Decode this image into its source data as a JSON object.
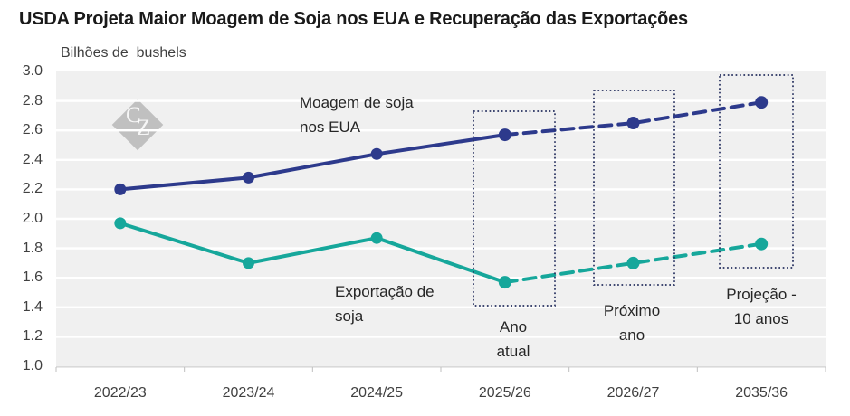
{
  "page": {
    "title": "USDA Projeta Maior Moagem de Soja nos EUA e Recuperação das Exportações",
    "unit_label": "Bilhões de  bushels"
  },
  "watermark": {
    "monogram": "CZ",
    "letter_c": "C",
    "letter_z": "Z"
  },
  "colors": {
    "crush_line": "#2d3a8c",
    "exports_line": "#16a79b",
    "plot_background": "#f0f0f0",
    "gridline": "#ffffff",
    "axis_line": "#d9d9d9",
    "axis_tick": "#bfbfbf",
    "tick_text": "#404040",
    "annotation_text": "#262626",
    "title_text": "#1a1a1a",
    "highlight_box_border": "#26305f",
    "watermark": "#bdbdbd"
  },
  "chart_data": {
    "type": "line",
    "title": "USDA Projeta Maior Moagem de Soja nos EUA e Recuperação das Exportações",
    "ylabel": "Bilhões de  bushels",
    "xlabel": "",
    "categories": [
      "2022/23",
      "2023/24",
      "2024/25",
      "2025/26",
      "2026/27",
      "2035/36"
    ],
    "series": [
      {
        "name": "Moagem de soja nos EUA",
        "annotation_lines": [
          "Moagem de soja",
          "nos EUA"
        ],
        "color": "#2d3a8c",
        "values": [
          2.2,
          2.28,
          2.44,
          2.57,
          2.65,
          2.79
        ],
        "projection_from": "2025/26",
        "style": "solid then dashed projection"
      },
      {
        "name": "Exportação de soja",
        "annotation_lines": [
          "Exportação de",
          "soja"
        ],
        "color": "#16a79b",
        "values": [
          1.97,
          1.7,
          1.87,
          1.57,
          1.7,
          1.83
        ],
        "projection_from": "2025/26",
        "style": "solid then dashed projection"
      }
    ],
    "ylim": [
      1.0,
      3.0
    ],
    "ytick_labels": [
      "3.0",
      "2.8",
      "2.6",
      "2.4",
      "2.2",
      "2.0",
      "1.8",
      "1.6",
      "1.4",
      "1.2",
      "1.0"
    ],
    "grid": "horizontal white gridlines on gray plot area",
    "legend_position": "inline annotations near lines",
    "highlight_boxes": [
      {
        "category": "2025/26",
        "label_lines": [
          "Ano",
          "atual"
        ]
      },
      {
        "category": "2026/27",
        "label_lines": [
          "Próximo",
          "ano"
        ]
      },
      {
        "category": "2035/36",
        "label_lines": [
          "Projeção -",
          "10 anos"
        ]
      }
    ]
  }
}
